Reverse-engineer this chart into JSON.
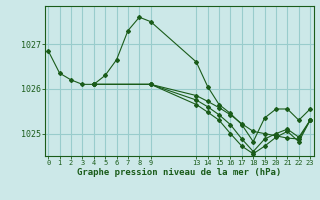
{
  "background_color": "#cce8e8",
  "grid_color": "#99cccc",
  "line_color": "#1a5c1a",
  "marker_color": "#1a5c1a",
  "xlabel": "Graphe pression niveau de la mer (hPa)",
  "ylim": [
    1024.5,
    1027.85
  ],
  "yticks": [
    1025,
    1026,
    1027
  ],
  "xlim": [
    -0.3,
    23.3
  ],
  "xticks_left": [
    0,
    1,
    2,
    3,
    4,
    5,
    6,
    7,
    8,
    9
  ],
  "xticks_right": [
    13,
    14,
    15,
    16,
    17,
    18,
    19,
    20,
    21,
    22,
    23
  ],
  "series": [
    {
      "x": [
        0,
        1,
        2,
        3,
        4,
        5,
        6,
        7,
        8,
        9,
        13,
        14,
        15,
        16,
        17,
        18,
        19,
        20,
        21,
        22,
        23
      ],
      "y": [
        1026.85,
        1026.35,
        1026.2,
        1026.1,
        1026.1,
        1026.3,
        1026.65,
        1027.3,
        1027.6,
        1027.5,
        1026.6,
        1026.05,
        1025.65,
        1025.45,
        1025.2,
        1024.82,
        1025.35,
        1025.55,
        1025.55,
        1025.3,
        1025.55
      ]
    },
    {
      "x": [
        4,
        9,
        13,
        14,
        15,
        16,
        17,
        18,
        19,
        20,
        21,
        22,
        23
      ],
      "y": [
        1026.1,
        1026.1,
        1025.85,
        1025.72,
        1025.58,
        1025.42,
        1025.22,
        1025.05,
        1025.0,
        1024.95,
        1024.9,
        1024.88,
        1025.3
      ]
    },
    {
      "x": [
        4,
        9,
        13,
        14,
        15,
        16,
        17,
        18,
        19,
        20,
        21,
        22,
        23
      ],
      "y": [
        1026.1,
        1026.1,
        1025.75,
        1025.6,
        1025.42,
        1025.2,
        1024.88,
        1024.6,
        1024.88,
        1025.0,
        1025.1,
        1024.92,
        1025.3
      ]
    },
    {
      "x": [
        4,
        9,
        13,
        14,
        15,
        16,
        17,
        18,
        19,
        20,
        21,
        22,
        23
      ],
      "y": [
        1026.1,
        1026.1,
        1025.65,
        1025.48,
        1025.3,
        1025.0,
        1024.72,
        1024.55,
        1024.72,
        1024.92,
        1025.05,
        1024.82,
        1025.3
      ]
    }
  ]
}
